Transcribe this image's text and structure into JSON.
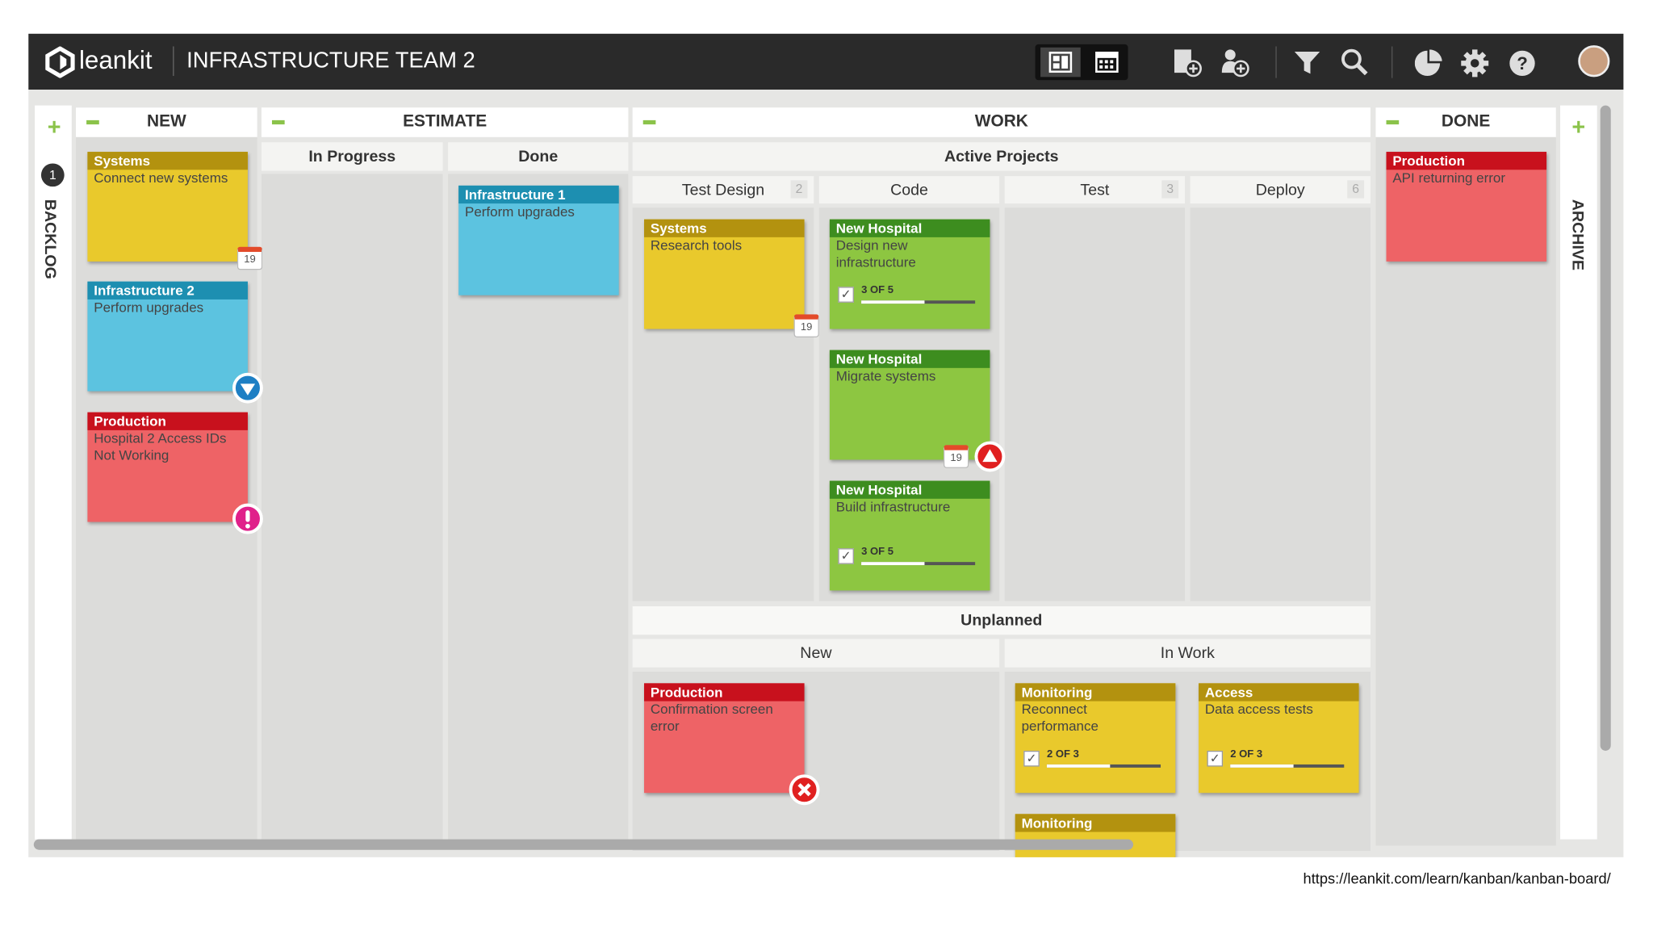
{
  "header": {
    "logo": "leankit",
    "board_title": "INFRASTRUCTURE TEAM 2"
  },
  "side_lanes": {
    "backlog": {
      "label": "BACKLOG",
      "count": "1"
    },
    "archive": {
      "label": "ARCHIVE"
    }
  },
  "lanes": [
    {
      "title": "NEW"
    },
    {
      "title": "ESTIMATE",
      "columns": [
        "In Progress",
        "Done"
      ]
    },
    {
      "title": "WORK",
      "groups": [
        {
          "title": "Active Projects",
          "columns": [
            {
              "title": "Test Design",
              "wip": "2"
            },
            {
              "title": "Code"
            },
            {
              "title": "Test",
              "wip": "3"
            },
            {
              "title": "Deploy",
              "wip": "6"
            }
          ]
        },
        {
          "title": "Unplanned",
          "columns": [
            {
              "title": "New"
            },
            {
              "title": "In Work"
            }
          ]
        }
      ]
    },
    {
      "title": "DONE"
    }
  ],
  "cards": [
    {
      "tag": "Systems",
      "text": "Connect new systems",
      "color": "#e9c92c",
      "tag_color": "#b3920f",
      "date": "19"
    },
    {
      "tag": "Infrastructure 2",
      "text": "Perform upgrades",
      "color": "#5cc3e0",
      "tag_color": "#1d8fb1",
      "icon": "down"
    },
    {
      "tag": "Production",
      "text": "Hospital 2 Access IDs Not Working",
      "color": "#ee6366",
      "tag_color": "#c8111d",
      "icon": "alert"
    },
    {
      "tag": "Infrastructure 1",
      "text": "Perform upgrades",
      "color": "#5cc3e0",
      "tag_color": "#1d8fb1"
    },
    {
      "tag": "Systems",
      "text": "Research tools",
      "color": "#e9c92c",
      "tag_color": "#b3920f",
      "date": "19"
    },
    {
      "tag": "New Hospital",
      "text": "Design new infrastructure",
      "color": "#8dc641",
      "tag_color": "#3d8d1f",
      "progress": "3 OF 5"
    },
    {
      "tag": "New Hospital",
      "text": "Migrate systems",
      "color": "#8dc641",
      "tag_color": "#3d8d1f",
      "date": "19",
      "icon": "up"
    },
    {
      "tag": "New Hospital",
      "text": "Build infrastructure",
      "color": "#8dc641",
      "tag_color": "#3d8d1f",
      "progress": "3 OF 5"
    },
    {
      "tag": "Production",
      "text": "Confirmation screen error",
      "color": "#ee6366",
      "tag_color": "#c8111d",
      "icon": "blocked"
    },
    {
      "tag": "Monitoring",
      "text": "Reconnect performance",
      "color": "#e9c92c",
      "tag_color": "#b3920f",
      "progress": "2 OF 3"
    },
    {
      "tag": "Access",
      "text": "Data access tests",
      "color": "#e9c92c",
      "tag_color": "#b3920f",
      "progress": "2 OF 3"
    },
    {
      "tag": "Monitoring",
      "color": "#e9c92c",
      "tag_color": "#b3920f"
    },
    {
      "tag": "Production",
      "text": "API returning error",
      "color": "#ee6366",
      "tag_color": "#c8111d"
    }
  ],
  "footer": {
    "url": "https://leankit.com/learn/kanban/kanban-board/"
  }
}
